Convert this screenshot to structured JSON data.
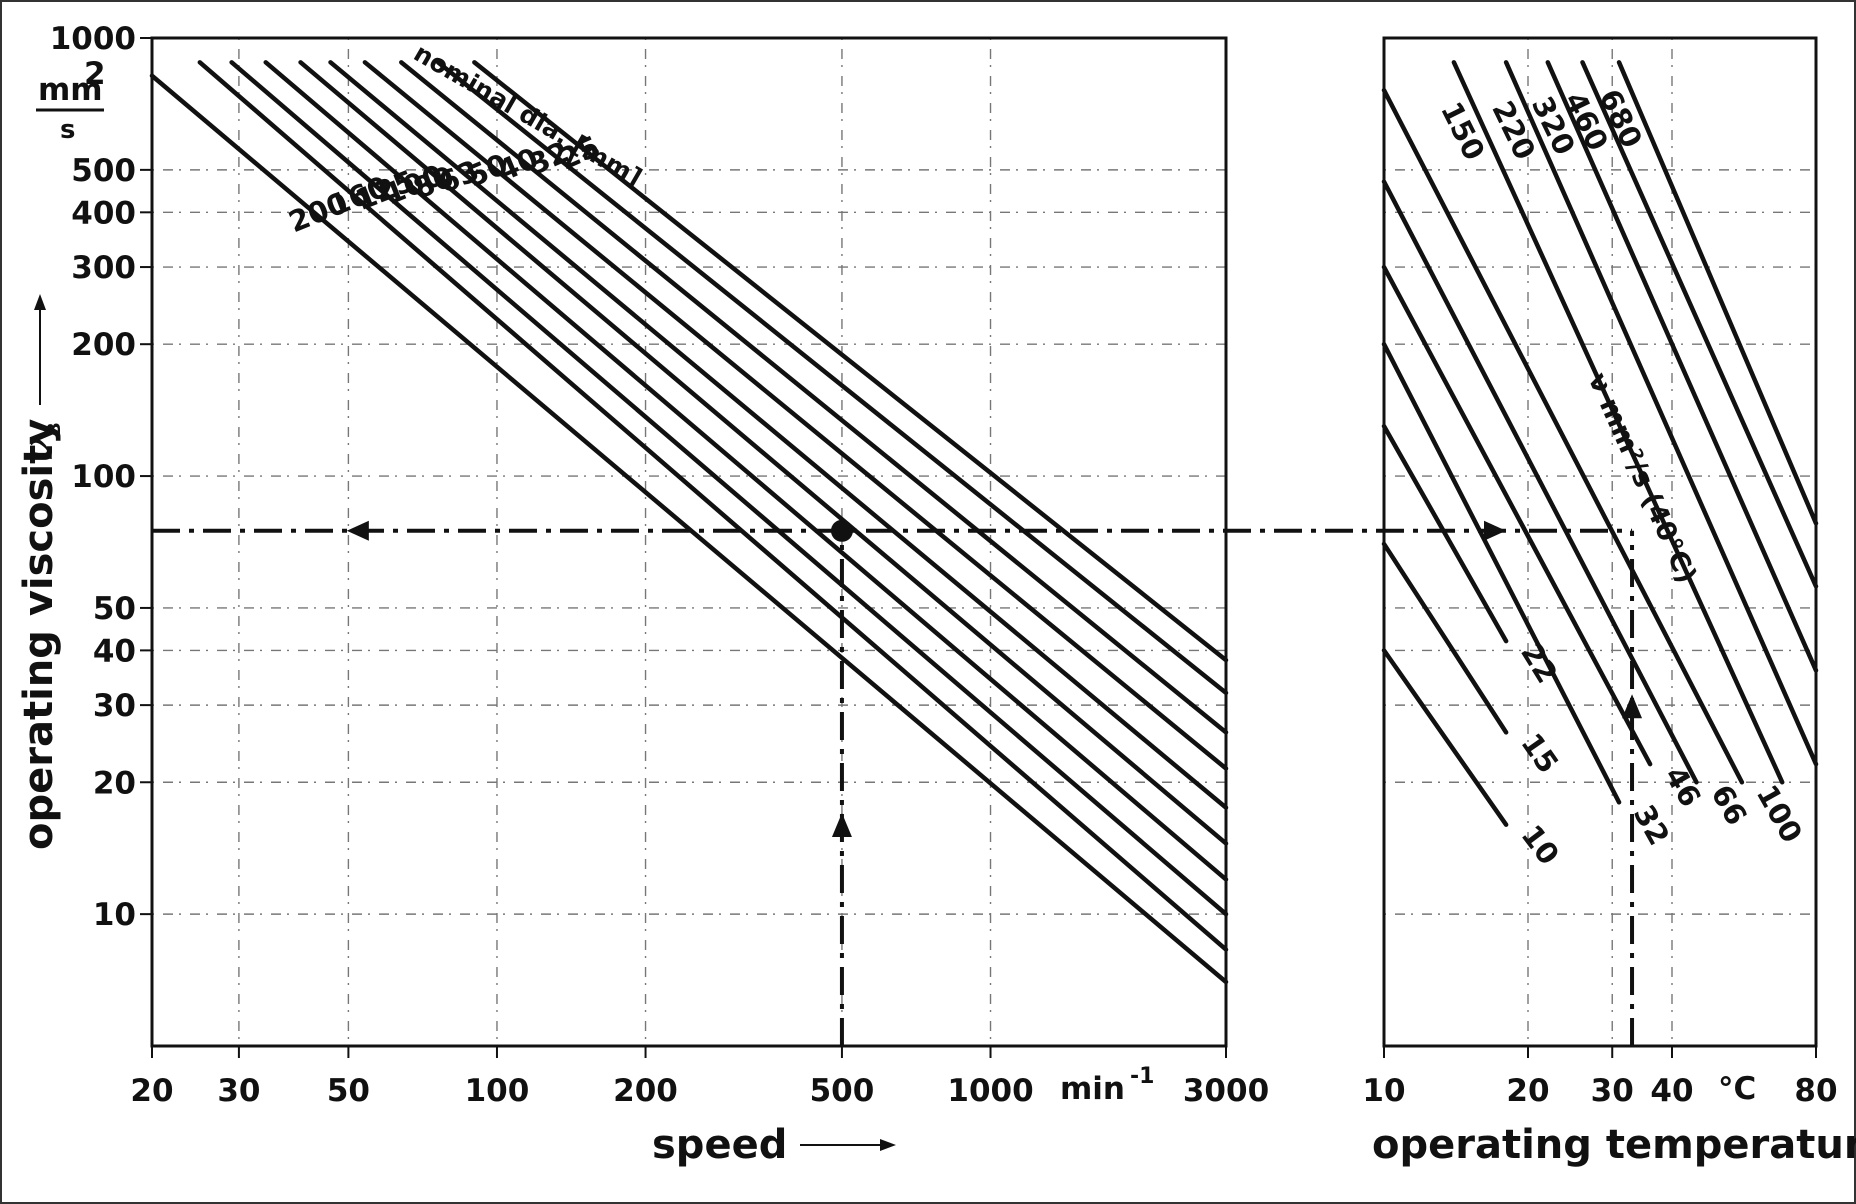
{
  "chart_data": [
    {
      "id": "speed-chart",
      "type": "line",
      "xlabel": "speed",
      "ylabel": "operating viscosity",
      "ylabel_symbol": "ν",
      "ylabel_subscript": "B",
      "y_unit_num": "mm",
      "y_unit_exp": "2",
      "y_unit_den": "s",
      "x_unit": "min",
      "x_unit_exp": "-1",
      "x_scale": "log",
      "y_scale": "log",
      "xlim": [
        20,
        3000
      ],
      "ylim": [
        5,
        1000
      ],
      "x_ticks": [
        {
          "v": 20,
          "label": "20"
        },
        {
          "v": 30,
          "label": "30"
        },
        {
          "v": 50,
          "label": "50"
        },
        {
          "v": 100,
          "label": "100"
        },
        {
          "v": 200,
          "label": "200"
        },
        {
          "v": 500,
          "label": "500"
        },
        {
          "v": 1000,
          "label": "1000"
        },
        {
          "v": 3000,
          "label": "3000"
        }
      ],
      "y_ticks": [
        {
          "v": 1000,
          "label": "1000"
        },
        {
          "v": 500,
          "label": "500"
        },
        {
          "v": 400,
          "label": "400"
        },
        {
          "v": 300,
          "label": "300"
        },
        {
          "v": 200,
          "label": "200"
        },
        {
          "v": 100,
          "label": "100"
        },
        {
          "v": 50,
          "label": "50"
        },
        {
          "v": 40,
          "label": "40"
        },
        {
          "v": 30,
          "label": "30"
        },
        {
          "v": 20,
          "label": "20"
        },
        {
          "v": 10,
          "label": "10"
        }
      ],
      "series_title": "nominal dia. [mm]",
      "series": [
        {
          "name": "25",
          "x0": 90,
          "y0": 880,
          "x1": 3000,
          "y1": 38
        },
        {
          "name": "32",
          "x0": 76,
          "y0": 880,
          "x1": 3000,
          "y1": 32
        },
        {
          "name": "40",
          "x0": 64,
          "y0": 880,
          "x1": 3000,
          "y1": 26
        },
        {
          "name": "50",
          "x0": 54,
          "y0": 880,
          "x1": 3000,
          "y1": 21.5
        },
        {
          "name": "63",
          "x0": 46,
          "y0": 880,
          "x1": 3000,
          "y1": 17.5
        },
        {
          "name": "80",
          "x0": 40,
          "y0": 880,
          "x1": 3000,
          "y1": 14.5
        },
        {
          "name": "100",
          "x0": 34,
          "y0": 880,
          "x1": 3000,
          "y1": 12
        },
        {
          "name": "125",
          "x0": 29,
          "y0": 880,
          "x1": 3000,
          "y1": 10
        },
        {
          "name": "160",
          "x0": 25,
          "y0": 880,
          "x1": 3000,
          "y1": 8.3
        },
        {
          "name": "200",
          "x0": 20,
          "y0": 820,
          "x1": 3000,
          "y1": 7
        }
      ],
      "example_point": {
        "x": 500,
        "y": 75
      }
    },
    {
      "id": "temperature-chart",
      "type": "line",
      "xlabel": "operating temperature",
      "x_unit": "°C",
      "x_scale": "log",
      "y_scale": "log",
      "xlim": [
        10,
        80
      ],
      "ylim": [
        5,
        1000
      ],
      "x_ticks": [
        {
          "v": 10,
          "label": "10"
        },
        {
          "v": 20,
          "label": "20"
        },
        {
          "v": 30,
          "label": "30"
        },
        {
          "v": 40,
          "label": "40"
        },
        {
          "v": 80,
          "label": "80"
        }
      ],
      "series_title": "ν mm²/s (40°C)",
      "series": [
        {
          "name": "10",
          "x0": 10,
          "y0": 40,
          "x1": 18,
          "y1": 16
        },
        {
          "name": "15",
          "x0": 10,
          "y0": 70,
          "x1": 18,
          "y1": 26
        },
        {
          "name": "22",
          "x0": 10,
          "y0": 130,
          "x1": 18,
          "y1": 42
        },
        {
          "name": "32",
          "x0": 10,
          "y0": 200,
          "x1": 31,
          "y1": 18
        },
        {
          "name": "46",
          "x0": 10,
          "y0": 300,
          "x1": 36,
          "y1": 22
        },
        {
          "name": "66",
          "x0": 10,
          "y0": 470,
          "x1": 45,
          "y1": 20
        },
        {
          "name": "100",
          "x0": 10,
          "y0": 760,
          "x1": 56,
          "y1": 20
        },
        {
          "name": "150",
          "x0": 14,
          "y0": 880,
          "x1": 68,
          "y1": 20
        },
        {
          "name": "220",
          "x0": 18,
          "y0": 880,
          "x1": 80,
          "y1": 22
        },
        {
          "name": "320",
          "x0": 22,
          "y0": 880,
          "x1": 80,
          "y1": 36
        },
        {
          "name": "460",
          "x0": 26,
          "y0": 880,
          "x1": 80,
          "y1": 56
        },
        {
          "name": "680",
          "x0": 31,
          "y0": 880,
          "x1": 80,
          "y1": 78
        }
      ],
      "example_point": {
        "x": 33,
        "y": 75
      }
    }
  ]
}
